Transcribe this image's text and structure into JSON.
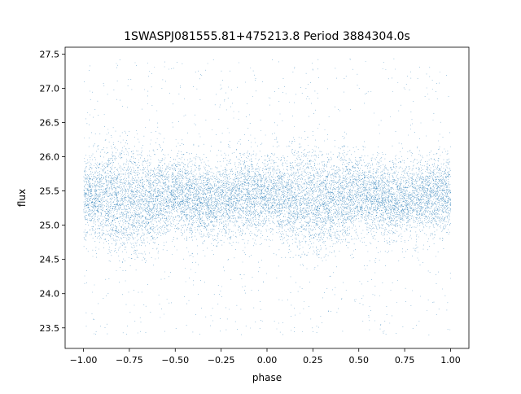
{
  "chart_data": {
    "type": "scatter",
    "title": "1SWASPJ081555.81+475213.8 Period 3884304.0s",
    "xlabel": "phase",
    "ylabel": "flux",
    "xlim": [
      -1.1,
      1.1
    ],
    "ylim": [
      23.2,
      27.6
    ],
    "x_ticks": [
      -1.0,
      -0.75,
      -0.5,
      -0.25,
      0.0,
      0.25,
      0.5,
      0.75,
      1.0
    ],
    "x_tick_labels": [
      "−1.00",
      "−0.75",
      "−0.50",
      "−0.25",
      "0.00",
      "0.25",
      "0.50",
      "0.75",
      "1.00"
    ],
    "y_ticks": [
      23.5,
      24.0,
      24.5,
      25.0,
      25.5,
      26.0,
      26.5,
      27.0,
      27.5
    ],
    "y_tick_labels": [
      "23.5",
      "24.0",
      "24.5",
      "25.0",
      "25.5",
      "26.0",
      "26.5",
      "27.0",
      "27.5"
    ],
    "grid": false,
    "marker_color": "#1f77b4",
    "phase_range": [
      -1.0,
      1.0
    ],
    "flux_range": [
      23.4,
      27.45
    ],
    "series": [
      {
        "envelope": {
          "phase": [
            -1.0,
            -0.9,
            -0.8,
            -0.7,
            -0.6,
            -0.5,
            -0.4,
            -0.3,
            -0.2,
            -0.1,
            0.0,
            0.1,
            0.2,
            0.3,
            0.4,
            0.5,
            0.6,
            0.7,
            0.8,
            0.9,
            1.0
          ],
          "median_flux": [
            25.45,
            25.4,
            25.35,
            25.35,
            25.4,
            25.45,
            25.4,
            25.35,
            25.4,
            25.45,
            25.45,
            25.4,
            25.35,
            25.35,
            25.4,
            25.45,
            25.4,
            25.35,
            25.4,
            25.45,
            25.45
          ],
          "spread": [
            0.45,
            0.55,
            0.65,
            0.6,
            0.55,
            0.45,
            0.45,
            0.45,
            0.45,
            0.45,
            0.45,
            0.55,
            0.65,
            0.6,
            0.55,
            0.45,
            0.45,
            0.45,
            0.45,
            0.45,
            0.45
          ]
        },
        "point_count": 14000
      }
    ]
  }
}
